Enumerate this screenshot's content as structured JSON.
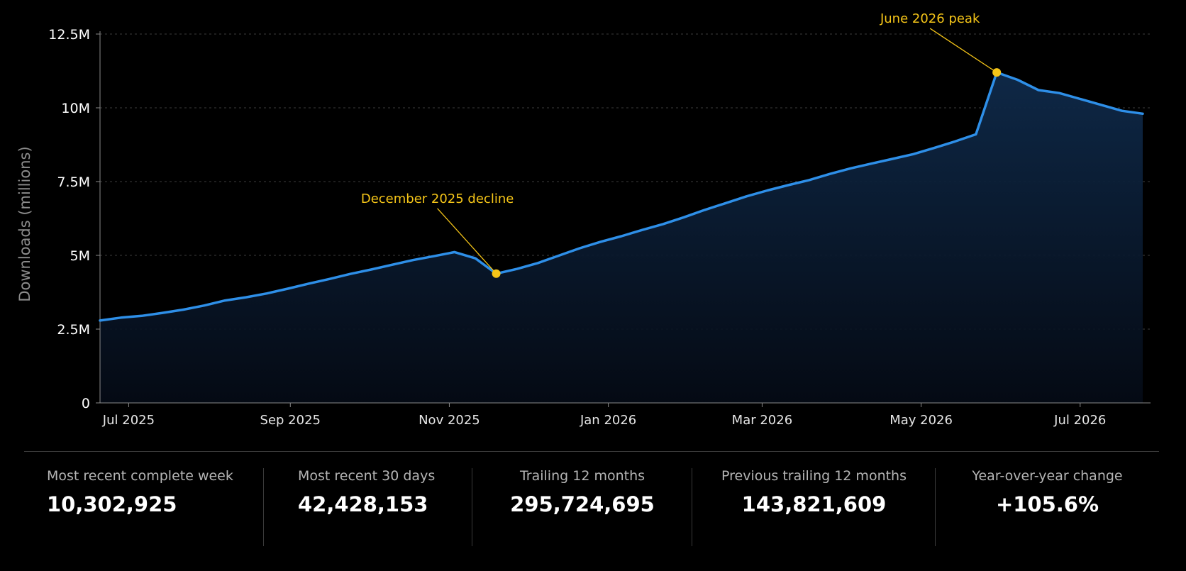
{
  "chart_data": {
    "type": "area",
    "ylabel": "Downloads (millions)",
    "ylim": [
      0,
      12500000
    ],
    "yticks": [
      {
        "value": 0,
        "label": "0"
      },
      {
        "value": 2500000,
        "label": "2.5M"
      },
      {
        "value": 5000000,
        "label": "5M"
      },
      {
        "value": 7500000,
        "label": "7.5M"
      },
      {
        "value": 10000000,
        "label": "10M"
      },
      {
        "value": 12500000,
        "label": "12.5M"
      }
    ],
    "xlim": [
      "2025-06-20",
      "2026-07-28"
    ],
    "xticks": [
      {
        "date": "2025-07-01",
        "label": "Jul 2025"
      },
      {
        "date": "2025-09-01",
        "label": "Sep 2025"
      },
      {
        "date": "2025-11-01",
        "label": "Nov 2025"
      },
      {
        "date": "2026-01-01",
        "label": "Jan 2026"
      },
      {
        "date": "2026-03-01",
        "label": "Mar 2026"
      },
      {
        "date": "2026-05-01",
        "label": "May 2026"
      },
      {
        "date": "2026-07-01",
        "label": "Jul 2026"
      }
    ],
    "grid": true,
    "line_color": "#2e8fe8",
    "annotation_color": "#f5c518",
    "series": [
      {
        "x": [
          "2025-06-20",
          "2025-06-28",
          "2025-07-06",
          "2025-07-14",
          "2025-07-22",
          "2025-07-30",
          "2025-08-07",
          "2025-08-15",
          "2025-08-23",
          "2025-08-31",
          "2025-09-08",
          "2025-09-16",
          "2025-09-24",
          "2025-10-02",
          "2025-10-10",
          "2025-10-18",
          "2025-10-26",
          "2025-11-03",
          "2025-11-11",
          "2025-11-19",
          "2025-11-27",
          "2025-12-05",
          "2025-12-13",
          "2025-12-21",
          "2025-12-29",
          "2026-01-06",
          "2026-01-14",
          "2026-01-22",
          "2026-01-30",
          "2026-02-07",
          "2026-02-15",
          "2026-02-23",
          "2026-03-03",
          "2026-03-11",
          "2026-03-19",
          "2026-03-27",
          "2026-04-04",
          "2026-04-12",
          "2026-04-20",
          "2026-04-28",
          "2026-05-06",
          "2026-05-14",
          "2026-05-22",
          "2026-05-30",
          "2026-06-07",
          "2026-06-15",
          "2026-06-23",
          "2026-07-01",
          "2026-07-09",
          "2026-07-17",
          "2026-07-25"
        ],
        "y": [
          2790000,
          2890000,
          2950000,
          3050000,
          3160000,
          3300000,
          3470000,
          3580000,
          3710000,
          3870000,
          4040000,
          4200000,
          4370000,
          4520000,
          4680000,
          4840000,
          4970000,
          5110000,
          4900000,
          4380000,
          4540000,
          4740000,
          4990000,
          5240000,
          5460000,
          5650000,
          5860000,
          6060000,
          6290000,
          6540000,
          6770000,
          7000000,
          7200000,
          7380000,
          7550000,
          7760000,
          7950000,
          8110000,
          8270000,
          8430000,
          8640000,
          8860000,
          9100000,
          11200000,
          10950000,
          10600000,
          10500000,
          10300000,
          10100000,
          9900000,
          9800000
        ]
      }
    ],
    "annotations": [
      {
        "text": "December 2025 decline",
        "x": "2025-11-19",
        "y": 4380000
      },
      {
        "text": "June 2026 peak",
        "x": "2026-05-30",
        "y": 11200000
      }
    ]
  },
  "stats": [
    {
      "label": "Most recent complete week",
      "value": "10,302,925"
    },
    {
      "label": "Most recent 30 days",
      "value": "42,428,153"
    },
    {
      "label": "Trailing 12 months",
      "value": "295,724,695"
    },
    {
      "label": "Previous trailing 12 months",
      "value": "143,821,609"
    },
    {
      "label": "Year-over-year change",
      "value": "+105.6%"
    }
  ]
}
